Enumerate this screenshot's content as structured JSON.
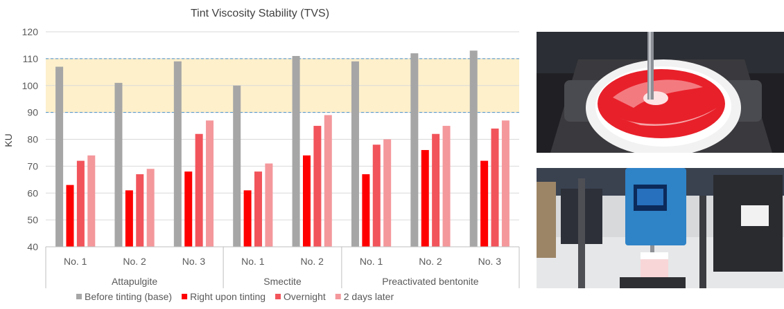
{
  "chart_data": {
    "type": "bar",
    "title": "Tint Viscosity Stability (TVS)",
    "ylabel": "KU",
    "xlabel": "",
    "ylim": [
      40,
      120
    ],
    "yticks": [
      40,
      50,
      60,
      70,
      80,
      90,
      100,
      110,
      120
    ],
    "grid": true,
    "legend": "bottom",
    "target_band": [
      90,
      110
    ],
    "groups": [
      {
        "name": "Attapulgite",
        "categories": [
          "No. 1",
          "No. 2",
          "No. 3"
        ]
      },
      {
        "name": "Smectite",
        "categories": [
          "No. 1",
          "No. 2"
        ]
      },
      {
        "name": "Preactivated bentonite",
        "categories": [
          "No. 1",
          "No. 2",
          "No. 3"
        ]
      }
    ],
    "series": [
      {
        "name": "Before tinting (base)",
        "color": "#a6a6a6",
        "values": [
          107,
          101,
          109,
          100,
          111,
          109,
          112,
          113
        ]
      },
      {
        "name": "Right upon tinting",
        "color": "#ff0000",
        "values": [
          63,
          61,
          68,
          61,
          74,
          67,
          76,
          72
        ]
      },
      {
        "name": "Overnight",
        "color": "#f2545b",
        "values": [
          72,
          67,
          82,
          68,
          85,
          78,
          82,
          84
        ]
      },
      {
        "name": "2 days later",
        "color": "#f4989c",
        "values": [
          74,
          69,
          87,
          71,
          89,
          80,
          85,
          87
        ]
      }
    ]
  },
  "images": {
    "mixer_photo": "red tint being mixed into white paint",
    "viscometer_photo": "laboratory viscometer"
  }
}
